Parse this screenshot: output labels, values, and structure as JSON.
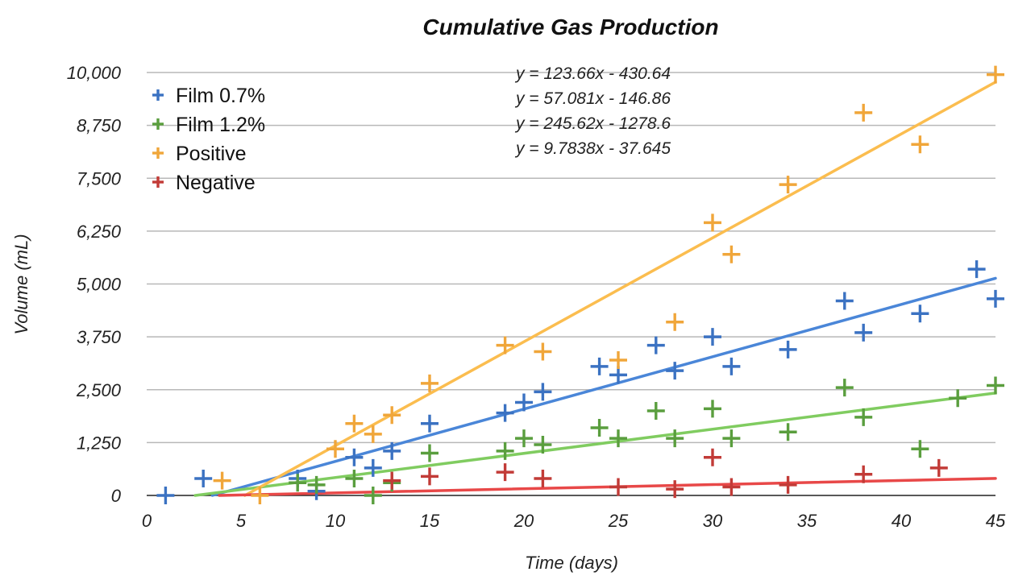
{
  "chart_data": {
    "type": "scatter",
    "title": "Cumulative Gas Production",
    "xlabel": "Time (days)",
    "ylabel": "Volume (mL)",
    "xlim": [
      0,
      45
    ],
    "ylim": [
      0,
      10000
    ],
    "x_ticks": [
      0,
      5,
      10,
      15,
      20,
      25,
      30,
      35,
      40,
      45
    ],
    "x_tick_labels": [
      "0",
      "5",
      "10",
      "15",
      "20",
      "25",
      "30",
      "35",
      "40",
      "45"
    ],
    "y_ticks": [
      0,
      1250,
      2500,
      3750,
      5000,
      6250,
      7500,
      8750,
      10000
    ],
    "y_tick_labels": [
      "0",
      "1,250",
      "2,500",
      "3,750",
      "5,000",
      "6,250",
      "7,500",
      "8,750",
      "10,000"
    ],
    "grid": "horizontal",
    "legend_position": "top-left",
    "series": [
      {
        "name": "Film 0.7%",
        "color": "#3b72c2",
        "trend_color": "#4a86d8",
        "equation": "y = 123.66x - 430.64",
        "slope": 123.66,
        "intercept": -430.64,
        "points": [
          [
            1,
            0
          ],
          [
            3,
            400
          ],
          [
            8,
            400
          ],
          [
            9,
            100
          ],
          [
            11,
            900
          ],
          [
            12,
            650
          ],
          [
            13,
            1050
          ],
          [
            15,
            1700
          ],
          [
            19,
            1950
          ],
          [
            20,
            2200
          ],
          [
            21,
            2450
          ],
          [
            24,
            3050
          ],
          [
            25,
            2850
          ],
          [
            27,
            3550
          ],
          [
            28,
            2950
          ],
          [
            30,
            3750
          ],
          [
            31,
            3050
          ],
          [
            34,
            3450
          ],
          [
            37,
            4600
          ],
          [
            38,
            3850
          ],
          [
            41,
            4300
          ],
          [
            44,
            5350
          ],
          [
            45,
            4650
          ]
        ]
      },
      {
        "name": "Film 1.2%",
        "color": "#5a9e3e",
        "trend_color": "#80cc60",
        "equation": "y = 57.081x - 146.86",
        "slope": 57.081,
        "intercept": -146.86,
        "points": [
          [
            8,
            300
          ],
          [
            9,
            250
          ],
          [
            11,
            400
          ],
          [
            12,
            0
          ],
          [
            13,
            300
          ],
          [
            15,
            1000
          ],
          [
            19,
            1050
          ],
          [
            20,
            1350
          ],
          [
            21,
            1200
          ],
          [
            24,
            1600
          ],
          [
            25,
            1350
          ],
          [
            27,
            2000
          ],
          [
            28,
            1350
          ],
          [
            30,
            2050
          ],
          [
            31,
            1350
          ],
          [
            34,
            1500
          ],
          [
            37,
            2550
          ],
          [
            38,
            1850
          ],
          [
            41,
            1100
          ],
          [
            43,
            2300
          ],
          [
            45,
            2600
          ]
        ]
      },
      {
        "name": "Positive",
        "color": "#f0a63a",
        "trend_color": "#fbbd4f",
        "equation": "y = 245.62x - 1278.6",
        "slope": 245.62,
        "intercept": -1278.6,
        "points": [
          [
            4,
            350
          ],
          [
            6,
            0
          ],
          [
            10,
            1100
          ],
          [
            11,
            1700
          ],
          [
            12,
            1450
          ],
          [
            13,
            1900
          ],
          [
            15,
            2650
          ],
          [
            19,
            3550
          ],
          [
            21,
            3400
          ],
          [
            25,
            3200
          ],
          [
            28,
            4100
          ],
          [
            30,
            6450
          ],
          [
            31,
            5700
          ],
          [
            34,
            7350
          ],
          [
            38,
            9050
          ],
          [
            41,
            8300
          ],
          [
            45,
            9950
          ]
        ]
      },
      {
        "name": "Negative",
        "color": "#c23b37",
        "trend_color": "#e84848",
        "equation": "y = 9.7838x - 37.645",
        "slope": 9.7838,
        "intercept": -37.645,
        "points": [
          [
            13,
            350
          ],
          [
            15,
            450
          ],
          [
            19,
            550
          ],
          [
            21,
            400
          ],
          [
            25,
            200
          ],
          [
            28,
            150
          ],
          [
            30,
            900
          ],
          [
            31,
            200
          ],
          [
            34,
            250
          ],
          [
            38,
            500
          ],
          [
            42,
            650
          ]
        ]
      }
    ]
  }
}
